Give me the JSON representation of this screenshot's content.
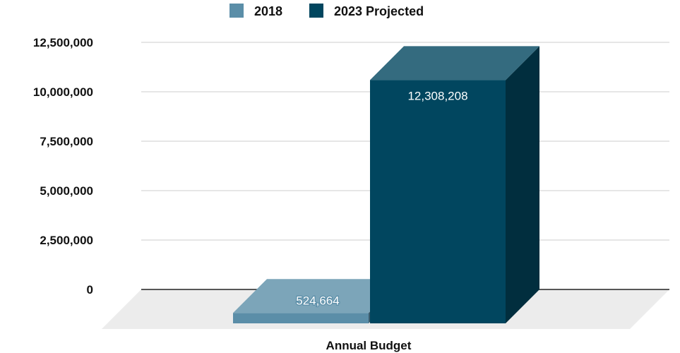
{
  "chart_data": {
    "type": "bar",
    "title": "",
    "xlabel": "Annual Budget",
    "ylabel": "",
    "categories": [
      "Annual Budget"
    ],
    "series": [
      {
        "name": "2018",
        "values": [
          524664
        ],
        "label": "524,664",
        "color": "#5b8ea8"
      },
      {
        "name": "2023 Projected",
        "values": [
          12308208
        ],
        "label": "12,308,208",
        "color": "#01465f"
      }
    ],
    "ylim": [
      0,
      12500000
    ],
    "yticks": [
      0,
      2500000,
      5000000,
      7500000,
      10000000,
      12500000
    ],
    "ytick_labels": [
      "0",
      "2,500,000",
      "5,000,000",
      "7,500,000",
      "10,000,000",
      "12,500,000"
    ],
    "legend_position": "top-center",
    "grid": true,
    "style": "3d"
  }
}
